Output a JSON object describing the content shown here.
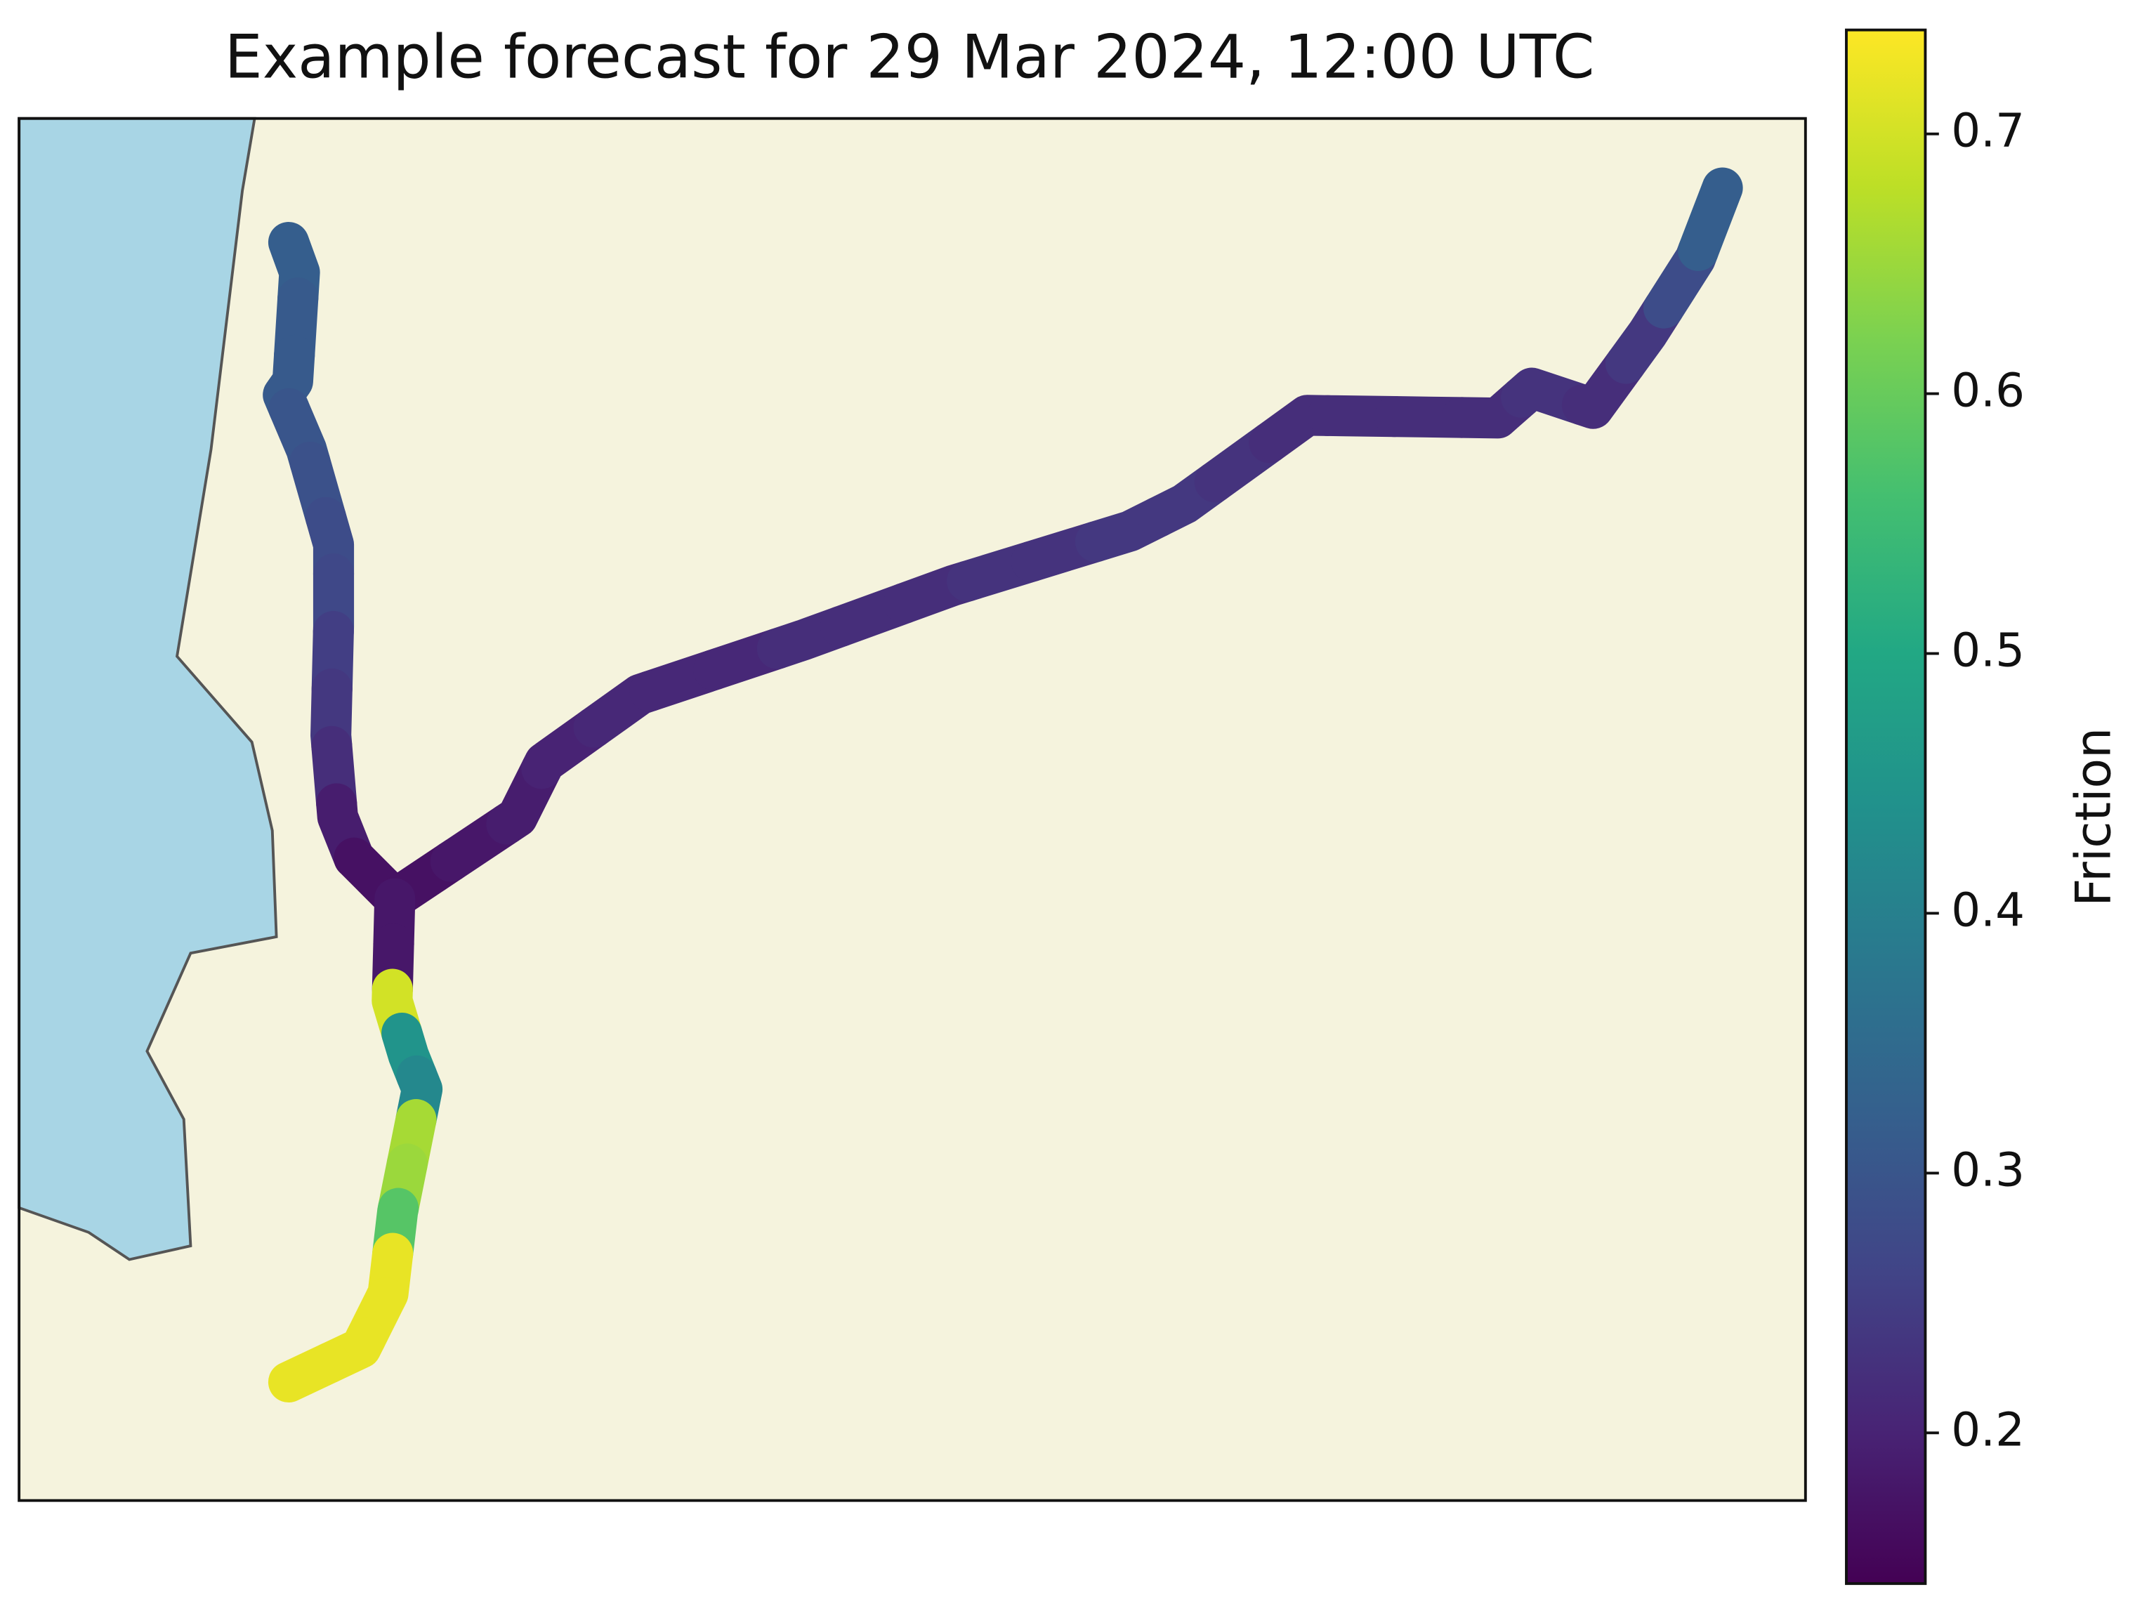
{
  "chart_data": {
    "type": "route-map",
    "title": "Example forecast for 29 Mar 2024, 12:00 UTC",
    "values": [
      0.32,
      0.31,
      0.31,
      0.3,
      0.29,
      0.28,
      0.27,
      0.25,
      0.24,
      0.22,
      0.19,
      0.17,
      0.17,
      0.18,
      0.19,
      0.2,
      0.21,
      0.21,
      0.21,
      0.22,
      0.22,
      0.22,
      0.23,
      0.23,
      0.24,
      0.24,
      0.23,
      0.22,
      0.22,
      0.22,
      0.22,
      0.23,
      0.22,
      0.24,
      0.28,
      0.32,
      0.18,
      0.18,
      0.7,
      0.45,
      0.42,
      0.66,
      0.65,
      0.58,
      0.72,
      0.72,
      0.72,
      0.72
    ],
    "colorbar": {
      "label": "Friction",
      "colormap": "viridis",
      "lim": [
        0.142,
        0.74
      ],
      "ticks": [
        0.2,
        0.3,
        0.4,
        0.5,
        0.6,
        0.7
      ]
    }
  }
}
